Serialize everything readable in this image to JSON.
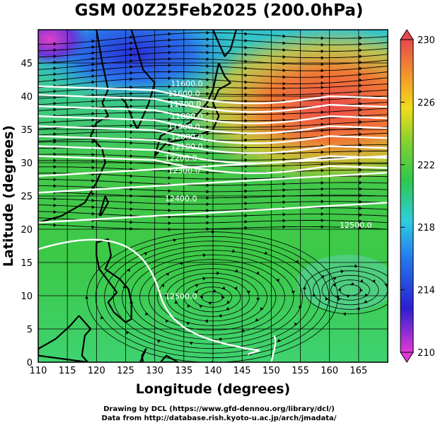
{
  "title": "GSM 00Z25Feb2025 (200.0hPa)",
  "x_axis": {
    "label": "Longitude (degrees)",
    "range": [
      110,
      170
    ],
    "ticks": [
      110,
      115,
      120,
      125,
      130,
      135,
      140,
      145,
      150,
      155,
      160,
      165
    ]
  },
  "y_axis": {
    "label": "Latitude  (degrees)",
    "range": [
      0,
      50
    ],
    "ticks": [
      0,
      5,
      10,
      15,
      20,
      25,
      30,
      35,
      40,
      45
    ]
  },
  "colorbar": {
    "range": [
      210,
      230
    ],
    "ticks": [
      210,
      214,
      218,
      222,
      226,
      230
    ],
    "colors": [
      "#e23ad6",
      "#2b1fd0",
      "#2478ee",
      "#2ecfe0",
      "#2fc74e",
      "#8ad22d",
      "#f0dc1e",
      "#f39a2a",
      "#e8484e"
    ]
  },
  "contour_labels": [
    "11600.0",
    "11600.0",
    "11700.0",
    "11800.0",
    "11900.0",
    "12000.0",
    "12100.0",
    "12200.0",
    "12300.0",
    "12400.0",
    "12500.0",
    "12500.0"
  ],
  "credits": {
    "line1": "Drawing by DCL (https://www.gfd-dennou.org/library/dcl/)",
    "line2": "Data from http://database.rish.kyoto-u.ac.jp/arch/jmadata/"
  }
}
